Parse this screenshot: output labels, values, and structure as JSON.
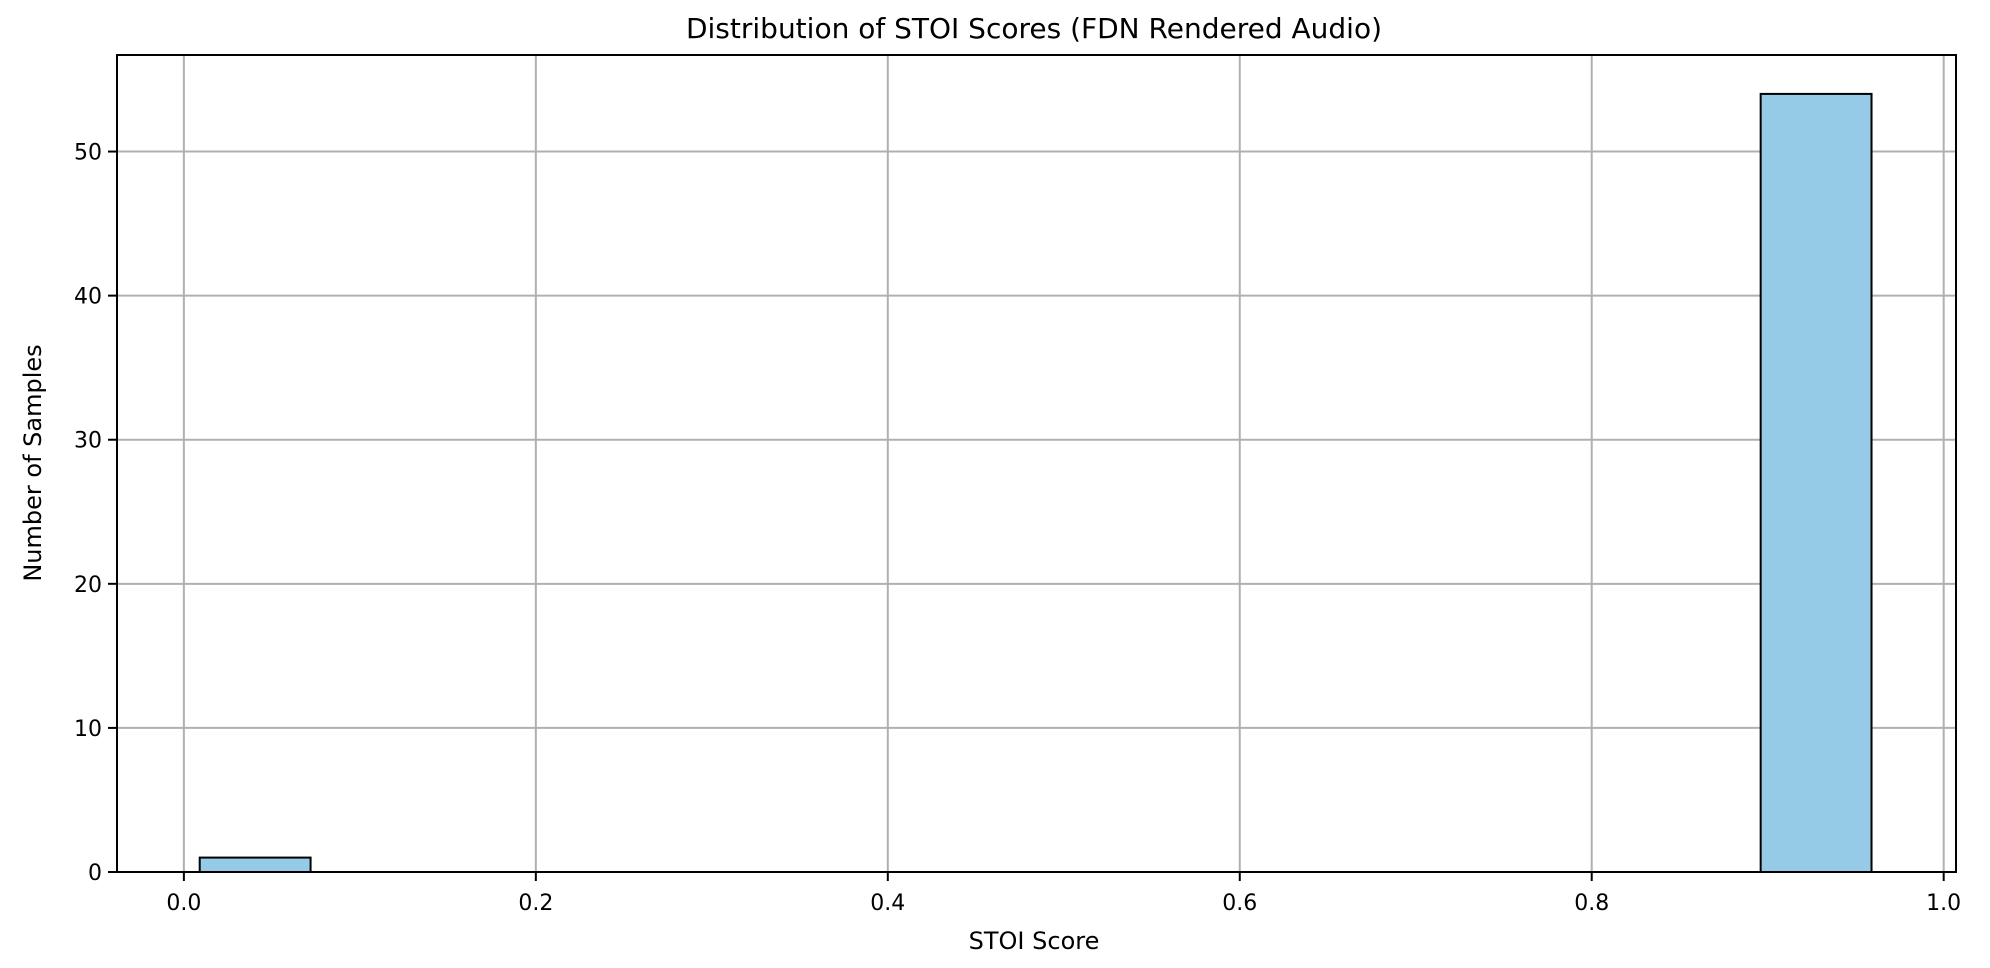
{
  "chart_data": {
    "type": "bar",
    "title": "Distribution of STOI Scores (FDN Rendered Audio)",
    "xlabel": "STOI Score",
    "ylabel": "Number of Samples",
    "xlim": [
      -0.038,
      1.007
    ],
    "ylim": [
      0,
      56.7
    ],
    "xticks": [
      0.0,
      0.2,
      0.4,
      0.6,
      0.8,
      1.0
    ],
    "xtick_labels": [
      "0.0",
      "0.2",
      "0.4",
      "0.6",
      "0.8",
      "1.0"
    ],
    "yticks": [
      0,
      10,
      20,
      30,
      40,
      50
    ],
    "ytick_labels": [
      "0",
      "10",
      "20",
      "30",
      "40",
      "50"
    ],
    "grid": true,
    "bar_color": "#95cbe6",
    "bins": [
      {
        "start": 0.009,
        "end": 0.072,
        "count": 1
      },
      {
        "start": 0.072,
        "end": 0.135,
        "count": 0
      },
      {
        "start": 0.135,
        "end": 0.198,
        "count": 0
      },
      {
        "start": 0.198,
        "end": 0.261,
        "count": 0
      },
      {
        "start": 0.261,
        "end": 0.324,
        "count": 0
      },
      {
        "start": 0.324,
        "end": 0.387,
        "count": 0
      },
      {
        "start": 0.387,
        "end": 0.45,
        "count": 0
      },
      {
        "start": 0.45,
        "end": 0.513,
        "count": 0
      },
      {
        "start": 0.513,
        "end": 0.576,
        "count": 0
      },
      {
        "start": 0.576,
        "end": 0.639,
        "count": 0
      },
      {
        "start": 0.639,
        "end": 0.702,
        "count": 0
      },
      {
        "start": 0.702,
        "end": 0.765,
        "count": 0
      },
      {
        "start": 0.765,
        "end": 0.828,
        "count": 0
      },
      {
        "start": 0.828,
        "end": 0.896,
        "count": 0
      },
      {
        "start": 0.896,
        "end": 0.959,
        "count": 54
      }
    ]
  }
}
